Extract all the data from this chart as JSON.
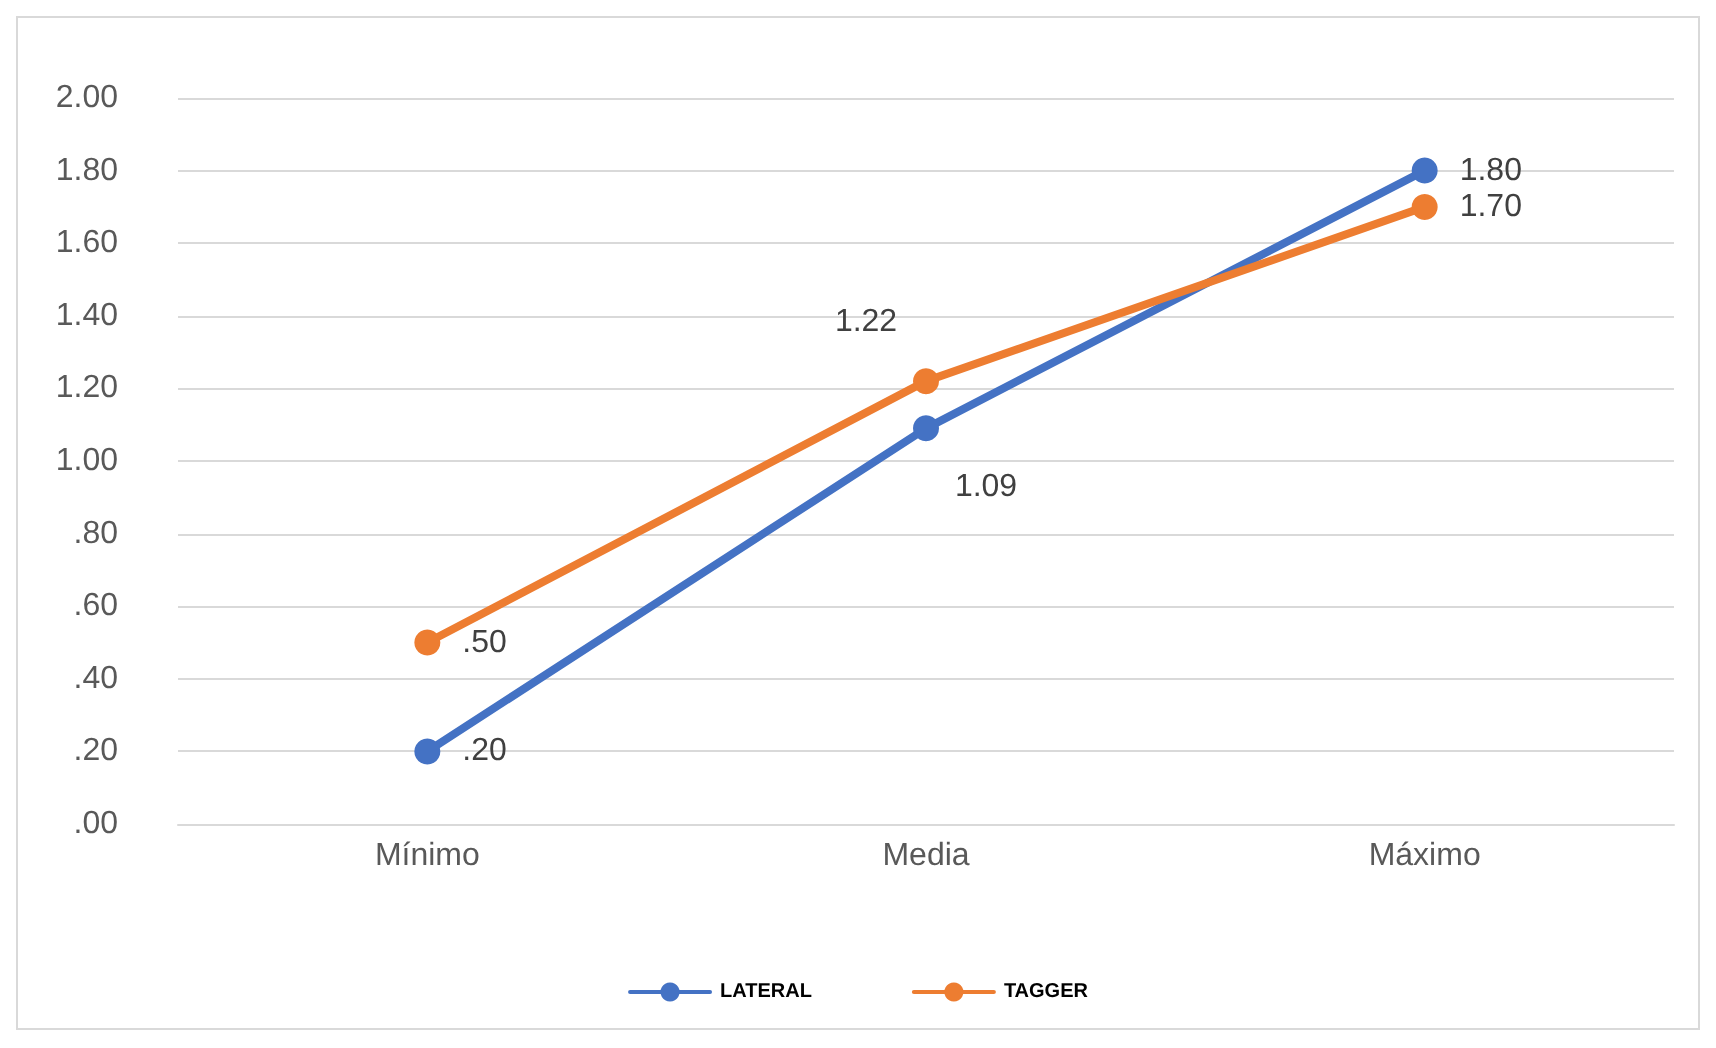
{
  "chart_data": {
    "type": "line",
    "categories": [
      "Mínimo",
      "Media",
      "Máximo"
    ],
    "series": [
      {
        "name": "LATERAL",
        "color": "#4472c4",
        "values": [
          0.2,
          1.09,
          1.8
        ],
        "value_labels": [
          ".20",
          "1.09",
          "1.80"
        ]
      },
      {
        "name": "TAGGER",
        "color": "#ed7d31",
        "values": [
          0.5,
          1.22,
          1.7
        ],
        "value_labels": [
          ".50",
          "1.22",
          "1.70"
        ]
      }
    ],
    "ylim": [
      0,
      2
    ],
    "yticks": [
      {
        "value": 0,
        "label": ".00"
      },
      {
        "value": 0.2,
        "label": ".20"
      },
      {
        "value": 0.4,
        "label": ".40"
      },
      {
        "value": 0.6,
        "label": ".60"
      },
      {
        "value": 0.8,
        "label": ".80"
      },
      {
        "value": 1,
        "label": "1.00"
      },
      {
        "value": 1.2,
        "label": "1.20"
      },
      {
        "value": 1.4,
        "label": "1.40"
      },
      {
        "value": 1.6,
        "label": "1.60"
      },
      {
        "value": 1.8,
        "label": "1.80"
      },
      {
        "value": 2,
        "label": "2.00"
      }
    ],
    "grid": "y",
    "legend": "bottom",
    "marker": "circle",
    "line_style": "solid"
  }
}
